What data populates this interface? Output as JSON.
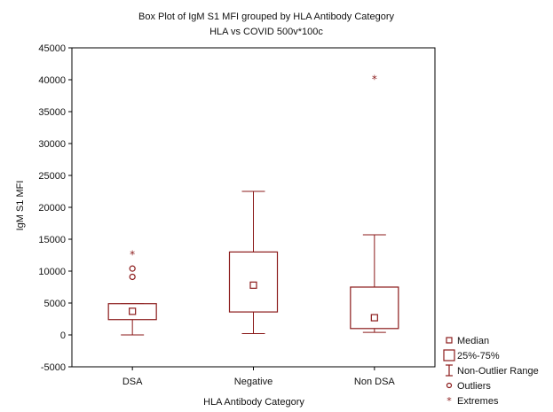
{
  "chart_data": {
    "type": "box",
    "title": "Box Plot of IgM S1 MFI grouped by  HLA Antibody Category",
    "subtitle": "HLA vs COVID 500v*100c",
    "xlabel": "HLA Antibody Category",
    "ylabel": "IgM S1 MFI",
    "ylim": [
      -5000,
      45000
    ],
    "yticks": [
      -5000,
      0,
      5000,
      10000,
      15000,
      20000,
      25000,
      30000,
      35000,
      40000,
      45000
    ],
    "ytick_labels": [
      "-5000",
      "0",
      "5000",
      "10000",
      "15000",
      "20000",
      "25000",
      "30000",
      "35000",
      "40000",
      "45000"
    ],
    "categories": [
      "DSA",
      "Negative",
      "Non DSA"
    ],
    "boxes": [
      {
        "category": "DSA",
        "whisker_low": 0,
        "q1": 2400,
        "median": 3700,
        "q3": 4900,
        "whisker_high": 4900,
        "outliers": [
          10400,
          9100
        ],
        "extremes": [
          12600
        ]
      },
      {
        "category": "Negative",
        "whisker_low": 200,
        "q1": 3600,
        "median": 7800,
        "q3": 13000,
        "whisker_high": 22500,
        "outliers": [],
        "extremes": []
      },
      {
        "category": "Non DSA",
        "whisker_low": 400,
        "q1": 1000,
        "median": 2700,
        "q3": 7500,
        "whisker_high": 15700,
        "outliers": [],
        "extremes": [
          40100
        ]
      }
    ],
    "legend": {
      "position": "bottom-right",
      "items": [
        "Median",
        "25%-75%",
        "Non-Outlier Range",
        "Outliers",
        "Extremes"
      ]
    },
    "grid": false,
    "color": "#8b1a1a"
  }
}
